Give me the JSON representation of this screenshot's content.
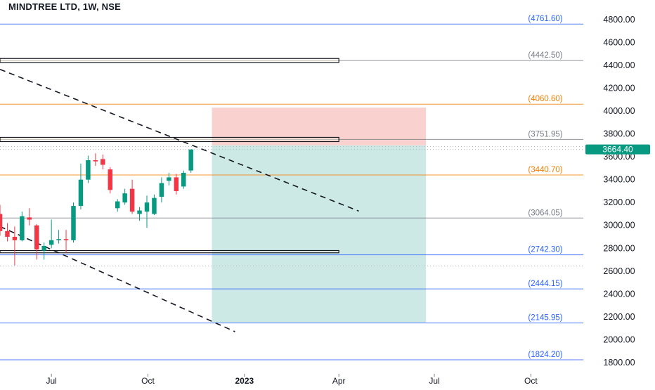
{
  "chart_data": {
    "type": "candlestick",
    "title": "MINDTREE LTD, 1W, NSE",
    "y_range": [
      1750,
      4900
    ],
    "x_range": [
      "2022-05-13",
      "2023-11-20"
    ],
    "y_ticks": [
      {
        "value": 1800,
        "label": "1800.00"
      },
      {
        "value": 2000,
        "label": "2000.00"
      },
      {
        "value": 2200,
        "label": "2200.00"
      },
      {
        "value": 2400,
        "label": "2400.00"
      },
      {
        "value": 2600,
        "label": "2600.00"
      },
      {
        "value": 2800,
        "label": "2800.00"
      },
      {
        "value": 3000,
        "label": "3000.00"
      },
      {
        "value": 3200,
        "label": "3200.00"
      },
      {
        "value": 3400,
        "label": "3400.00"
      },
      {
        "value": 3600,
        "label": "3600.00"
      },
      {
        "value": 3800,
        "label": "3800.00"
      },
      {
        "value": 4000,
        "label": "4000.00"
      },
      {
        "value": 4200,
        "label": "4200.00"
      },
      {
        "value": 4400,
        "label": "4400.00"
      },
      {
        "value": 4600,
        "label": "4600.00"
      },
      {
        "value": 4800,
        "label": "4800.00"
      }
    ],
    "x_ticks": [
      {
        "date": "2022-07-01",
        "label": "Jul",
        "bold": false
      },
      {
        "date": "2022-10-01",
        "label": "Oct",
        "bold": false
      },
      {
        "date": "2023-01-01",
        "label": "2023",
        "bold": true
      },
      {
        "date": "2023-04-01",
        "label": "Apr",
        "bold": false
      },
      {
        "date": "2023-07-01",
        "label": "Jul",
        "bold": false
      },
      {
        "date": "2023-10-01",
        "label": "Oct",
        "bold": false
      }
    ],
    "last_price": {
      "value": 3664.4,
      "label": "3664.40",
      "color": "#089981"
    },
    "levels": [
      {
        "value": 4761.6,
        "label": "(4761.60)",
        "color": "#2962ff"
      },
      {
        "value": 4442.5,
        "label": "(4442.50)",
        "color": "#787b86"
      },
      {
        "value": 4060.6,
        "label": "(4060.60)",
        "color": "#f57c00"
      },
      {
        "value": 3751.95,
        "label": "(3751.95)",
        "color": "#787b86"
      },
      {
        "value": 3440.7,
        "label": "(3440.70)",
        "color": "#f57c00"
      },
      {
        "value": 3064.05,
        "label": "(3064.05)",
        "color": "#787b86"
      },
      {
        "value": 2742.3,
        "label": "(2742.30)",
        "color": "#2962ff"
      },
      {
        "value": 2444.15,
        "label": "(2444.15)",
        "color": "#2962ff"
      },
      {
        "value": 2145.95,
        "label": "(2145.95)",
        "color": "#2962ff"
      },
      {
        "value": 1824.2,
        "label": "(1824.20)",
        "color": "#2962ff"
      }
    ],
    "dotted_levels": [
      3690,
      3664.4,
      2645
    ],
    "boxes": [
      {
        "from": "2022-05-13",
        "to": "2023-04-01",
        "top": 4460,
        "bottom": 4425
      },
      {
        "from": "2022-05-13",
        "to": "2023-04-01",
        "top": 3770,
        "bottom": 3733
      },
      {
        "from": "2022-05-13",
        "to": "2023-04-01",
        "top": 2780,
        "bottom": 2760
      }
    ],
    "position": {
      "from": "2022-12-01",
      "to": "2023-06-23",
      "entry": 3700,
      "stop": 4030,
      "target": 2150,
      "loss_color": "#f9d2d0",
      "profit_color": "#cde9e6"
    },
    "trendlines": [
      {
        "x1": "2022-05-13",
        "y1": 4365,
        "x2": "2023-04-20",
        "y2": 3125
      },
      {
        "x1": "2022-05-13",
        "y1": 2990,
        "x2": "2022-12-23",
        "y2": 2070
      }
    ],
    "candles": [
      {
        "date": "2022-05-13",
        "open": 3100,
        "high": 3180,
        "low": 2910,
        "close": 2950
      },
      {
        "date": "2022-05-20",
        "open": 2950,
        "high": 3020,
        "low": 2860,
        "close": 2900
      },
      {
        "date": "2022-05-27",
        "open": 2900,
        "high": 2990,
        "low": 2650,
        "close": 2870
      },
      {
        "date": "2022-06-03",
        "open": 2870,
        "high": 3120,
        "low": 2860,
        "close": 3080
      },
      {
        "date": "2022-06-10",
        "open": 3070,
        "high": 3150,
        "low": 3000,
        "close": 3050
      },
      {
        "date": "2022-06-17",
        "open": 3000,
        "high": 3010,
        "low": 2700,
        "close": 2790
      },
      {
        "date": "2022-06-24",
        "open": 2780,
        "high": 2850,
        "low": 2700,
        "close": 2820
      },
      {
        "date": "2022-07-01",
        "open": 2830,
        "high": 3050,
        "low": 2800,
        "close": 2870
      },
      {
        "date": "2022-07-08",
        "open": 2870,
        "high": 2960,
        "low": 2840,
        "close": 2880
      },
      {
        "date": "2022-07-15",
        "open": 2880,
        "high": 2960,
        "low": 2760,
        "close": 2870
      },
      {
        "date": "2022-07-22",
        "open": 2870,
        "high": 3200,
        "low": 2850,
        "close": 3170
      },
      {
        "date": "2022-07-29",
        "open": 3170,
        "high": 3540,
        "low": 3140,
        "close": 3400
      },
      {
        "date": "2022-08-05",
        "open": 3400,
        "high": 3610,
        "low": 3370,
        "close": 3570
      },
      {
        "date": "2022-08-12",
        "open": 3570,
        "high": 3630,
        "low": 3520,
        "close": 3560
      },
      {
        "date": "2022-08-19",
        "open": 3580,
        "high": 3620,
        "low": 3490,
        "close": 3530
      },
      {
        "date": "2022-08-26",
        "open": 3490,
        "high": 3510,
        "low": 3280,
        "close": 3310
      },
      {
        "date": "2022-09-02",
        "open": 3150,
        "high": 3230,
        "low": 3120,
        "close": 3210
      },
      {
        "date": "2022-09-09",
        "open": 3200,
        "high": 3320,
        "low": 3180,
        "close": 3280
      },
      {
        "date": "2022-09-16",
        "open": 3320,
        "high": 3400,
        "low": 3100,
        "close": 3120
      },
      {
        "date": "2022-09-23",
        "open": 3100,
        "high": 3160,
        "low": 3040,
        "close": 3130
      },
      {
        "date": "2022-09-30",
        "open": 3120,
        "high": 3260,
        "low": 2980,
        "close": 3200
      },
      {
        "date": "2022-10-07",
        "open": 3100,
        "high": 3270,
        "low": 3090,
        "close": 3240
      },
      {
        "date": "2022-10-14",
        "open": 3250,
        "high": 3420,
        "low": 3200,
        "close": 3370
      },
      {
        "date": "2022-10-21",
        "open": 3390,
        "high": 3460,
        "low": 3350,
        "close": 3420
      },
      {
        "date": "2022-10-28",
        "open": 3420,
        "high": 3450,
        "low": 3270,
        "close": 3300
      },
      {
        "date": "2022-11-04",
        "open": 3340,
        "high": 3480,
        "low": 3320,
        "close": 3460
      },
      {
        "date": "2022-11-11",
        "open": 3480,
        "high": 3660,
        "low": 3460,
        "close": 3664.4
      }
    ]
  }
}
